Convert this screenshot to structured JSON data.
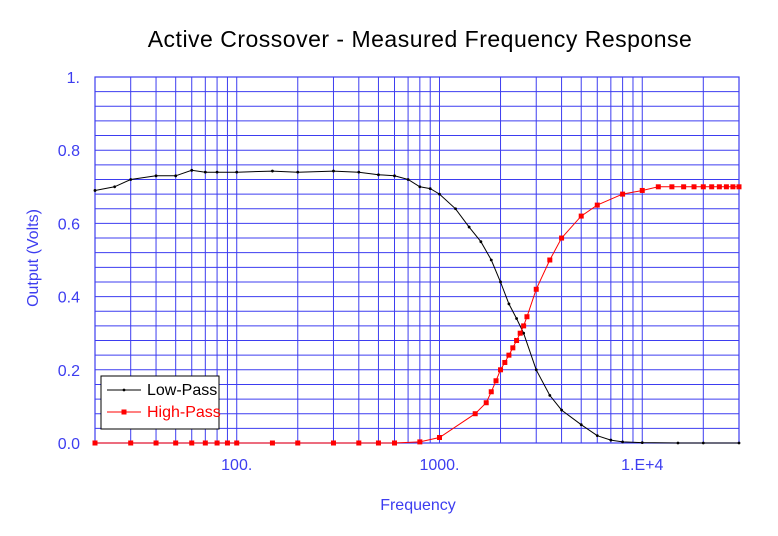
{
  "chart_data": {
    "type": "line",
    "title": "Active Crossover - Measured Frequency Response",
    "xlabel": "Frequency",
    "ylabel": "Output (Volts)",
    "xscale": "log",
    "xlim": [
      20,
      30000
    ],
    "ylim": [
      0,
      1
    ],
    "grid": true,
    "legend_position": "bottom-left",
    "x_ticks": [
      {
        "value": 100,
        "label": "100."
      },
      {
        "value": 1000,
        "label": "1000."
      },
      {
        "value": 10000,
        "label": "1.E+4"
      }
    ],
    "y_ticks": [
      {
        "value": 0.0,
        "label": "0.0"
      },
      {
        "value": 0.2,
        "label": "0.2"
      },
      {
        "value": 0.4,
        "label": "0.4"
      },
      {
        "value": 0.6,
        "label": "0.6"
      },
      {
        "value": 0.8,
        "label": "0.8"
      },
      {
        "value": 1.0,
        "label": "1."
      }
    ],
    "series": [
      {
        "name": "Low-Pass",
        "color": "#000000",
        "marker": "dot",
        "points": [
          [
            20,
            0.69
          ],
          [
            25,
            0.7
          ],
          [
            30,
            0.72
          ],
          [
            40,
            0.73
          ],
          [
            50,
            0.73
          ],
          [
            60,
            0.745
          ],
          [
            70,
            0.74
          ],
          [
            80,
            0.74
          ],
          [
            100,
            0.74
          ],
          [
            150,
            0.743
          ],
          [
            200,
            0.74
          ],
          [
            300,
            0.743
          ],
          [
            400,
            0.74
          ],
          [
            500,
            0.733
          ],
          [
            600,
            0.73
          ],
          [
            700,
            0.72
          ],
          [
            800,
            0.7
          ],
          [
            900,
            0.695
          ],
          [
            1000,
            0.68
          ],
          [
            1200,
            0.64
          ],
          [
            1400,
            0.59
          ],
          [
            1600,
            0.55
          ],
          [
            1800,
            0.5
          ],
          [
            2000,
            0.44
          ],
          [
            2200,
            0.38
          ],
          [
            2400,
            0.34
          ],
          [
            2600,
            0.3
          ],
          [
            3000,
            0.2
          ],
          [
            3500,
            0.13
          ],
          [
            4000,
            0.09
          ],
          [
            5000,
            0.05
          ],
          [
            6000,
            0.02
          ],
          [
            7000,
            0.008
          ],
          [
            8000,
            0.003
          ],
          [
            10000,
            0.001
          ],
          [
            15000,
            0.0
          ],
          [
            20000,
            0.0
          ],
          [
            30000,
            0.0
          ]
        ]
      },
      {
        "name": "High-Pass",
        "color": "#ff0000",
        "marker": "square",
        "points": [
          [
            20,
            0.0
          ],
          [
            30,
            0.0
          ],
          [
            40,
            0.0
          ],
          [
            50,
            0.0
          ],
          [
            60,
            0.0
          ],
          [
            70,
            0.0
          ],
          [
            80,
            0.0
          ],
          [
            90,
            0.0
          ],
          [
            100,
            0.0
          ],
          [
            150,
            0.0
          ],
          [
            200,
            0.0
          ],
          [
            300,
            0.0
          ],
          [
            400,
            0.0
          ],
          [
            500,
            0.0
          ],
          [
            600,
            0.0
          ],
          [
            800,
            0.003
          ],
          [
            1000,
            0.015
          ],
          [
            1500,
            0.08
          ],
          [
            1700,
            0.11
          ],
          [
            1800,
            0.14
          ],
          [
            1900,
            0.17
          ],
          [
            2000,
            0.2
          ],
          [
            2100,
            0.22
          ],
          [
            2200,
            0.24
          ],
          [
            2300,
            0.26
          ],
          [
            2400,
            0.28
          ],
          [
            2500,
            0.3
          ],
          [
            2600,
            0.32
          ],
          [
            2700,
            0.345
          ],
          [
            3000,
            0.42
          ],
          [
            3500,
            0.5
          ],
          [
            4000,
            0.56
          ],
          [
            5000,
            0.62
          ],
          [
            6000,
            0.65
          ],
          [
            8000,
            0.68
          ],
          [
            10000,
            0.69
          ],
          [
            12000,
            0.7
          ],
          [
            14000,
            0.7
          ],
          [
            16000,
            0.7
          ],
          [
            18000,
            0.7
          ],
          [
            20000,
            0.7
          ],
          [
            22000,
            0.7
          ],
          [
            24000,
            0.7
          ],
          [
            26000,
            0.7
          ],
          [
            28000,
            0.7
          ],
          [
            30000,
            0.7
          ]
        ]
      }
    ]
  }
}
